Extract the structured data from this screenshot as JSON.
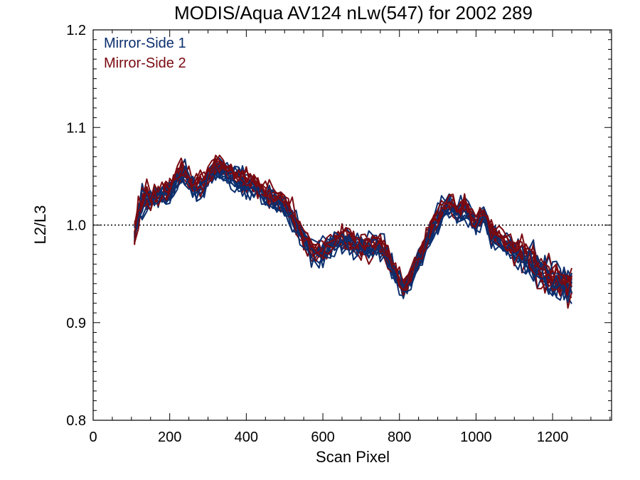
{
  "chart_data": {
    "type": "line",
    "title": "MODIS/Aqua AV124 nLw(547) for 2002 289",
    "xlabel": "Scan Pixel",
    "ylabel": "L2/L3",
    "xlim": [
      0,
      1354
    ],
    "ylim": [
      0.8,
      1.2
    ],
    "xticks": [
      0,
      200,
      400,
      600,
      800,
      1000,
      1200
    ],
    "xtick_labels": [
      "0",
      "200",
      "400",
      "600",
      "800",
      "1000",
      "1200"
    ],
    "yticks": [
      0.8,
      0.9,
      1.0,
      1.1,
      1.2
    ],
    "ytick_labels": [
      "0.8",
      "0.9",
      "1.0",
      "1.1",
      "1.2"
    ],
    "reference_line": 1.0,
    "grid": false,
    "legend_position": "top-left",
    "colors": {
      "mirror_side_1": "#0b2f6e",
      "mirror_side_2": "#7a0a10"
    },
    "series": [
      {
        "name": "Mirror-Side 1",
        "color": "#0b2f6e",
        "line_count": 10
      },
      {
        "name": "Mirror-Side 2",
        "color": "#7a0a10",
        "line_count": 10
      }
    ],
    "x": [
      108,
      118,
      128,
      140,
      150,
      160,
      170,
      180,
      190,
      200,
      210,
      220,
      230,
      240,
      250,
      260,
      270,
      280,
      290,
      300,
      310,
      320,
      330,
      340,
      350,
      360,
      370,
      380,
      390,
      400,
      410,
      420,
      430,
      440,
      450,
      460,
      470,
      480,
      490,
      500,
      510,
      520,
      530,
      540,
      550,
      560,
      570,
      580,
      590,
      600,
      610,
      620,
      630,
      640,
      650,
      660,
      670,
      680,
      690,
      700,
      710,
      720,
      730,
      740,
      750,
      760,
      770,
      780,
      790,
      800,
      810,
      820,
      830,
      840,
      850,
      860,
      870,
      880,
      890,
      900,
      910,
      920,
      930,
      940,
      950,
      960,
      970,
      980,
      990,
      1000,
      1010,
      1020,
      1030,
      1040,
      1050,
      1060,
      1070,
      1080,
      1090,
      1100,
      1110,
      1120,
      1130,
      1140,
      1150,
      1160,
      1170,
      1180,
      1190,
      1200,
      1210,
      1220,
      1230,
      1240,
      1250
    ],
    "mean_ratio": [
      0.988,
      1.01,
      1.02,
      1.025,
      1.027,
      1.03,
      1.03,
      1.032,
      1.033,
      1.035,
      1.04,
      1.048,
      1.054,
      1.052,
      1.047,
      1.042,
      1.038,
      1.04,
      1.044,
      1.05,
      1.055,
      1.058,
      1.059,
      1.057,
      1.053,
      1.05,
      1.048,
      1.047,
      1.044,
      1.043,
      1.041,
      1.039,
      1.036,
      1.033,
      1.031,
      1.029,
      1.027,
      1.025,
      1.023,
      1.02,
      1.015,
      1.008,
      1.0,
      0.993,
      0.986,
      0.98,
      0.975,
      0.972,
      0.971,
      0.972,
      0.975,
      0.978,
      0.981,
      0.984,
      0.985,
      0.984,
      0.982,
      0.98,
      0.978,
      0.976,
      0.975,
      0.976,
      0.979,
      0.98,
      0.978,
      0.973,
      0.966,
      0.958,
      0.95,
      0.943,
      0.937,
      0.94,
      0.947,
      0.955,
      0.963,
      0.972,
      0.982,
      0.992,
      1.0,
      1.006,
      1.012,
      1.018,
      1.02,
      1.017,
      1.013,
      1.015,
      1.017,
      1.012,
      1.005,
      1.0,
      1.008,
      1.01,
      1.0,
      0.992,
      0.988,
      0.985,
      0.983,
      0.98,
      0.977,
      0.974,
      0.972,
      0.97,
      0.968,
      0.965,
      0.96,
      0.955,
      0.95,
      0.947,
      0.945,
      0.943,
      0.941,
      0.94,
      0.939,
      0.938,
      0.937
    ]
  }
}
